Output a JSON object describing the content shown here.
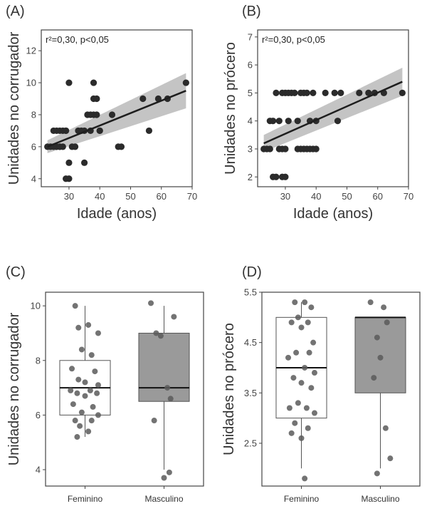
{
  "chart_data": [
    {
      "type": "scatter",
      "panel": "(A)",
      "annotation": "r²=0,30, p<0,05",
      "xlabel": "Idade (anos)",
      "ylabel": "Unidades no corrugador",
      "xlim": [
        21,
        70
      ],
      "ylim": [
        3.5,
        13.3
      ],
      "xticks": [
        "30",
        "40",
        "50",
        "60",
        "70"
      ],
      "yticks": [
        "4",
        "6",
        "8",
        "10",
        "12"
      ],
      "fit": {
        "x": [
          23,
          68
        ],
        "y": [
          6.0,
          9.5
        ],
        "ci_lower": [
          5.6,
          8.4
        ],
        "ci_upper": [
          6.4,
          10.6
        ]
      },
      "x": [
        23,
        24,
        25,
        25,
        26,
        26,
        27,
        27,
        27,
        28,
        28,
        29,
        29,
        29,
        30,
        30,
        30,
        31,
        32,
        33,
        34,
        35,
        35,
        36,
        37,
        37,
        38,
        38,
        38,
        39,
        39,
        40,
        40,
        44,
        46,
        47,
        54,
        56,
        59,
        62,
        68
      ],
      "y": [
        6,
        6,
        6,
        7,
        7,
        6,
        6,
        7,
        6,
        6,
        7,
        4,
        7,
        7,
        4,
        5,
        10,
        6,
        6,
        7,
        7,
        5,
        7,
        8,
        7,
        8,
        8,
        9,
        10,
        9,
        8,
        7,
        7,
        8,
        6,
        6,
        9,
        7,
        9,
        9,
        10
      ]
    },
    {
      "type": "scatter",
      "panel": "(B)",
      "annotation": "r²=0,30, p<0,05",
      "xlabel": "Idade (anos)",
      "ylabel": "Unidades no prócero",
      "xlim": [
        21,
        70
      ],
      "ylim": [
        1.65,
        7.25
      ],
      "xticks": [
        "30",
        "40",
        "50",
        "60",
        "70"
      ],
      "yticks": [
        "2",
        "3",
        "4",
        "5",
        "6",
        "7"
      ],
      "fit": {
        "x": [
          23,
          68
        ],
        "y": [
          3.2,
          5.4
        ],
        "ci_lower": [
          2.9,
          4.9
        ],
        "ci_upper": [
          3.5,
          5.9
        ]
      },
      "x": [
        23,
        24,
        25,
        25,
        26,
        26,
        27,
        27,
        28,
        28,
        29,
        29,
        29,
        30,
        30,
        30,
        31,
        31,
        32,
        33,
        34,
        34,
        35,
        35,
        36,
        36,
        37,
        37,
        38,
        38,
        39,
        39,
        40,
        40,
        43,
        46,
        47,
        48,
        54,
        57,
        59,
        62,
        68
      ],
      "y": [
        3,
        3,
        4,
        3,
        4,
        2,
        5,
        2,
        3,
        4,
        2,
        5,
        3,
        2,
        5,
        3,
        4,
        5,
        5,
        5,
        4,
        3,
        3,
        5,
        3,
        5,
        3,
        5,
        4,
        3,
        5,
        3,
        3,
        4,
        5,
        5,
        4,
        5,
        5,
        5,
        5,
        5,
        5
      ]
    },
    {
      "type": "box",
      "panel": "(C)",
      "xlabel": "",
      "ylabel": "Unidades no corrugador",
      "ylim": [
        3.4,
        10.5
      ],
      "yticks": [
        "4",
        "6",
        "8",
        "10"
      ],
      "categories": [
        "Feminino",
        "Masculino"
      ],
      "boxes": [
        {
          "whisker_low": 5.2,
          "q1": 6.0,
          "median": 7.0,
          "q3": 8.0,
          "whisker_high": 10.0,
          "color": "#ffffff"
        },
        {
          "whisker_low": 4.0,
          "q1": 6.5,
          "median": 7.0,
          "q3": 9.0,
          "whisker_high": 10.0,
          "color": "#9a9a9a"
        }
      ],
      "points": [
        {
          "group": 0,
          "dx": -0.15,
          "y": 10.0
        },
        {
          "group": 0,
          "dx": 0.05,
          "y": 9.3
        },
        {
          "group": 0,
          "dx": -0.1,
          "y": 9.2
        },
        {
          "group": 0,
          "dx": 0.2,
          "y": 9.0
        },
        {
          "group": 0,
          "dx": -0.05,
          "y": 8.4
        },
        {
          "group": 0,
          "dx": 0.1,
          "y": 8.2
        },
        {
          "group": 0,
          "dx": -0.2,
          "y": 7.7
        },
        {
          "group": 0,
          "dx": 0.15,
          "y": 7.6
        },
        {
          "group": 0,
          "dx": -0.1,
          "y": 7.3
        },
        {
          "group": 0,
          "dx": 0.0,
          "y": 7.2
        },
        {
          "group": 0,
          "dx": 0.2,
          "y": 7.1
        },
        {
          "group": 0,
          "dx": -0.22,
          "y": 6.9
        },
        {
          "group": 0,
          "dx": 0.08,
          "y": 6.9
        },
        {
          "group": 0,
          "dx": -0.12,
          "y": 6.8
        },
        {
          "group": 0,
          "dx": 0.18,
          "y": 6.8
        },
        {
          "group": 0,
          "dx": 0.0,
          "y": 6.7
        },
        {
          "group": 0,
          "dx": -0.18,
          "y": 6.4
        },
        {
          "group": 0,
          "dx": 0.12,
          "y": 6.3
        },
        {
          "group": 0,
          "dx": -0.05,
          "y": 6.1
        },
        {
          "group": 0,
          "dx": 0.2,
          "y": 6.0
        },
        {
          "group": 0,
          "dx": -0.15,
          "y": 5.8
        },
        {
          "group": 0,
          "dx": 0.1,
          "y": 5.8
        },
        {
          "group": 0,
          "dx": -0.08,
          "y": 5.6
        },
        {
          "group": 0,
          "dx": 0.05,
          "y": 5.4
        },
        {
          "group": 0,
          "dx": -0.12,
          "y": 5.2
        },
        {
          "group": 1,
          "dx": -0.2,
          "y": 10.1
        },
        {
          "group": 1,
          "dx": 0.15,
          "y": 9.6
        },
        {
          "group": 1,
          "dx": -0.12,
          "y": 9.0
        },
        {
          "group": 1,
          "dx": -0.05,
          "y": 8.9
        },
        {
          "group": 1,
          "dx": 0.05,
          "y": 7.0
        },
        {
          "group": 1,
          "dx": 0.1,
          "y": 6.6
        },
        {
          "group": 1,
          "dx": -0.15,
          "y": 5.8
        },
        {
          "group": 1,
          "dx": 0.08,
          "y": 3.9
        },
        {
          "group": 1,
          "dx": 0.0,
          "y": 3.7
        }
      ]
    },
    {
      "type": "box",
      "panel": "(D)",
      "xlabel": "",
      "ylabel": "Unidades no prócero",
      "ylim": [
        1.65,
        5.5
      ],
      "yticks": [
        "2.5",
        "3.5",
        "4.5",
        "5.5"
      ],
      "categories": [
        "Feminino",
        "Masculino"
      ],
      "boxes": [
        {
          "whisker_low": 2.0,
          "q1": 3.0,
          "median": 4.0,
          "q3": 5.0,
          "whisker_high": 5.3,
          "color": "#ffffff"
        },
        {
          "whisker_low": 2.0,
          "q1": 3.5,
          "median": 5.0,
          "q3": 5.0,
          "whisker_high": 5.0,
          "color": "#9a9a9a"
        }
      ],
      "points": [
        {
          "group": 0,
          "dx": -0.1,
          "y": 5.3
        },
        {
          "group": 0,
          "dx": 0.05,
          "y": 5.3
        },
        {
          "group": 0,
          "dx": 0.15,
          "y": 5.2
        },
        {
          "group": 0,
          "dx": -0.05,
          "y": 5.0
        },
        {
          "group": 0,
          "dx": 0.1,
          "y": 4.9
        },
        {
          "group": 0,
          "dx": -0.15,
          "y": 4.9
        },
        {
          "group": 0,
          "dx": 0.0,
          "y": 4.8
        },
        {
          "group": 0,
          "dx": 0.18,
          "y": 4.5
        },
        {
          "group": 0,
          "dx": -0.08,
          "y": 4.3
        },
        {
          "group": 0,
          "dx": 0.12,
          "y": 4.3
        },
        {
          "group": 0,
          "dx": -0.2,
          "y": 4.2
        },
        {
          "group": 0,
          "dx": 0.05,
          "y": 4.0
        },
        {
          "group": 0,
          "dx": 0.2,
          "y": 3.9
        },
        {
          "group": 0,
          "dx": -0.12,
          "y": 3.8
        },
        {
          "group": 0,
          "dx": 0.0,
          "y": 3.7
        },
        {
          "group": 0,
          "dx": 0.15,
          "y": 3.6
        },
        {
          "group": 0,
          "dx": -0.05,
          "y": 3.3
        },
        {
          "group": 0,
          "dx": -0.18,
          "y": 3.2
        },
        {
          "group": 0,
          "dx": 0.08,
          "y": 3.2
        },
        {
          "group": 0,
          "dx": 0.2,
          "y": 3.1
        },
        {
          "group": 0,
          "dx": -0.1,
          "y": 2.9
        },
        {
          "group": 0,
          "dx": 0.1,
          "y": 2.8
        },
        {
          "group": 0,
          "dx": -0.15,
          "y": 2.7
        },
        {
          "group": 0,
          "dx": 0.0,
          "y": 2.6
        },
        {
          "group": 0,
          "dx": 0.05,
          "y": 1.8
        },
        {
          "group": 1,
          "dx": -0.15,
          "y": 5.3
        },
        {
          "group": 1,
          "dx": 0.05,
          "y": 5.2
        },
        {
          "group": 1,
          "dx": 0.1,
          "y": 4.9
        },
        {
          "group": 1,
          "dx": -0.05,
          "y": 4.6
        },
        {
          "group": 1,
          "dx": 0.0,
          "y": 4.2
        },
        {
          "group": 1,
          "dx": -0.1,
          "y": 3.8
        },
        {
          "group": 1,
          "dx": 0.08,
          "y": 2.8
        },
        {
          "group": 1,
          "dx": 0.15,
          "y": 2.2
        },
        {
          "group": 1,
          "dx": -0.05,
          "y": 1.9
        }
      ]
    }
  ]
}
